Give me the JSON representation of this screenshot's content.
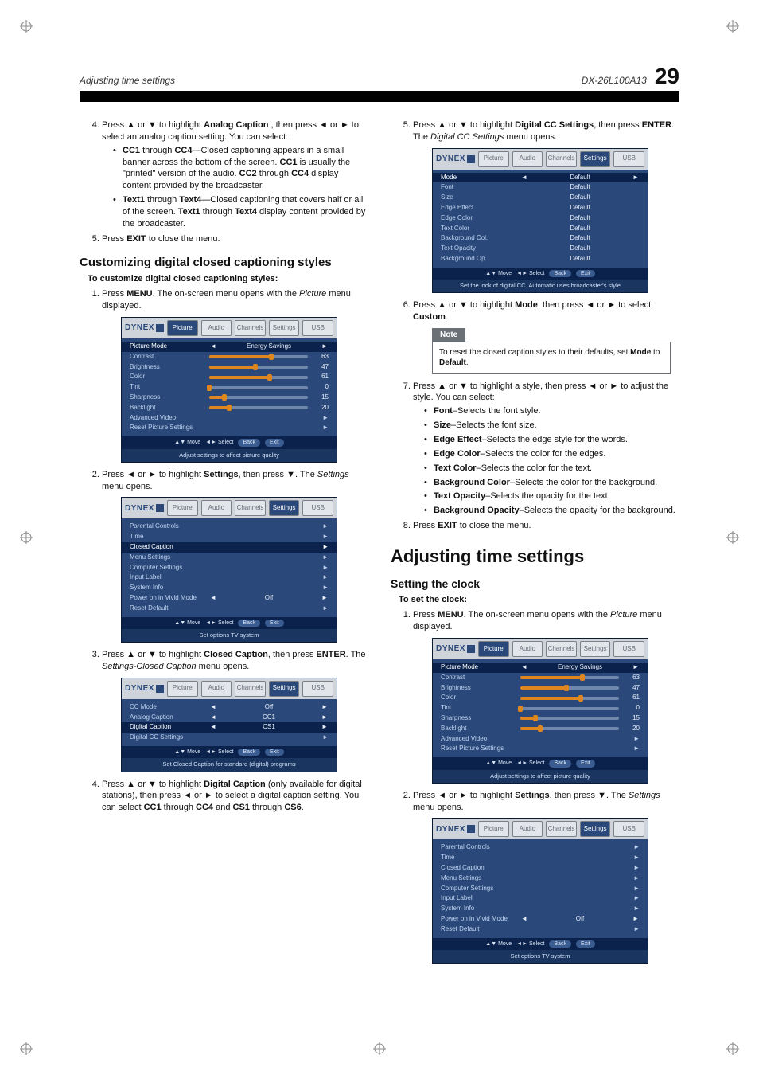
{
  "meta": {
    "header_left": "Adjusting time settings",
    "model": "DX-26L100A13",
    "page_number": "29"
  },
  "left": {
    "step4_intro": "Press ▲ or ▼ to highlight ",
    "step4_bold": "Analog Caption",
    "step4_rest": ", then press ◄ or ► to select an analog caption setting. You can select:",
    "bullet_cc_a": "CC1",
    "bullet_cc_b": " through ",
    "bullet_cc_c": "CC4",
    "bullet_cc_d": "—Closed captioning appears in a small banner across the bottom of the screen. ",
    "bullet_cc_e": "CC1",
    "bullet_cc_f": " is usually the \"printed\" version of the audio. ",
    "bullet_cc_g": "CC2",
    "bullet_cc_h": " through ",
    "bullet_cc_i": "CC4",
    "bullet_cc_j": " display content provided by the broadcaster.",
    "bullet_txt_a": "Text1",
    "bullet_txt_b": " through ",
    "bullet_txt_c": "Text4",
    "bullet_txt_d": "—Closed captioning that covers half or all of the screen. ",
    "bullet_txt_e": "Text1",
    "bullet_txt_f": " through ",
    "bullet_txt_g": "Text4",
    "bullet_txt_h": " display content provided by the broadcaster.",
    "step5_a": "Press ",
    "step5_b": "EXIT",
    "step5_c": " to close the menu.",
    "h2": "Customizing digital closed captioning styles",
    "task": "To customize digital closed captioning styles:",
    "s1_a": "Press ",
    "s1_b": "MENU",
    "s1_c": ". The on-screen menu opens with the ",
    "s1_d": "Picture",
    "s1_e": " menu displayed.",
    "s2_a": "Press ◄ or ► to highlight ",
    "s2_b": "Settings",
    "s2_c": ", then press ▼. The ",
    "s2_d": "Settings",
    "s2_e": " menu opens.",
    "s3_a": "Press ▲ or ▼ to highlight ",
    "s3_b": "Closed Caption",
    "s3_c": ", then press ",
    "s3_d": "ENTER",
    "s3_e": ". The ",
    "s3_f": "Settings-Closed Caption",
    "s3_g": " menu opens.",
    "s4_a": "Press ▲ or ▼ to highlight ",
    "s4_b": "Digital Caption",
    "s4_c": " (only available for digital stations), then press ◄ or ► to select a digital caption setting. You can select ",
    "s4_d": "CC1",
    "s4_e": " through ",
    "s4_f": "CC4",
    "s4_g": " and ",
    "s4_h": "CS1",
    "s4_i": " through ",
    "s4_j": "CS6",
    "s4_k": "."
  },
  "right": {
    "s5_a": "Press ▲ or ▼ to highlight ",
    "s5_b": "Digital CC Settings",
    "s5_c": ", then press ",
    "s5_d": "ENTER",
    "s5_e": ". The ",
    "s5_f": "Digital CC Settings",
    "s5_g": " menu opens.",
    "s6_a": "Press ▲ or ▼ to highlight ",
    "s6_b": "Mode",
    "s6_c": ", then press ◄ or ► to select ",
    "s6_d": "Custom",
    "s6_e": ".",
    "note_head": "Note",
    "note_body_a": "To reset the closed caption styles to their defaults, set ",
    "note_body_b": "Mode",
    "note_body_c": " to ",
    "note_body_d": "Default",
    "note_body_e": ".",
    "s7_a": "Press ▲ or ▼ to highlight a style, then press ◄ or ► to adjust the style. You can select:",
    "b_font_a": "Font",
    "b_font_b": "–Selects the font style.",
    "b_size_a": "Size",
    "b_size_b": "–Selects the font size.",
    "b_ee_a": "Edge Effect",
    "b_ee_b": "–Selects the edge style for the words.",
    "b_ec_a": "Edge Color",
    "b_ec_b": "–Selects the color for the edges.",
    "b_tc_a": "Text Color",
    "b_tc_b": "–Selects the color for the text.",
    "b_bc_a": "Background Color",
    "b_bc_b": "–Selects the color for the background.",
    "b_to_a": "Text Opacity",
    "b_to_b": "–Selects the opacity for the text.",
    "b_bo_a": "Background Opacity",
    "b_bo_b": "–Selects the opacity for the background.",
    "s8_a": "Press ",
    "s8_b": "EXIT",
    "s8_c": " to close the menu.",
    "h1": "Adjusting time settings",
    "h3": "Setting the clock",
    "task": "To set the clock:",
    "c1_a": "Press ",
    "c1_b": "MENU",
    "c1_c": ". The on-screen menu opens with the ",
    "c1_d": "Picture",
    "c1_e": " menu displayed.",
    "c2_a": "Press ◄ or ► to highlight ",
    "c2_b": "Settings",
    "c2_c": ", then press ▼. The ",
    "c2_d": "Settings",
    "c2_e": " menu opens."
  },
  "osd": {
    "logo": "DYNEX",
    "tab_labels": [
      "Picture",
      "Audio",
      "Channels",
      "Settings",
      "USB"
    ],
    "picture": {
      "caption": "Adjust settings to affect picture quality",
      "rows": [
        {
          "label": "Picture Mode",
          "value": "Energy Savings",
          "arrows": true,
          "hi": true
        },
        {
          "label": "Contrast",
          "slider": 63
        },
        {
          "label": "Brightness",
          "slider": 47
        },
        {
          "label": "Color",
          "slider": 61
        },
        {
          "label": "Tint",
          "slider": 0
        },
        {
          "label": "Sharpness",
          "slider": 15
        },
        {
          "label": "Backlight",
          "slider": 20
        },
        {
          "label": "Advanced Video",
          "more": true
        },
        {
          "label": "Reset Picture Settings",
          "more": true
        }
      ],
      "hint": {
        "move": "▲▼ Move",
        "select": "◄► Select",
        "back": "Back",
        "exit": "Exit"
      }
    },
    "settings": {
      "caption": "Set options TV system",
      "rows": [
        {
          "label": "Parental Controls",
          "more": true
        },
        {
          "label": "Time",
          "more": true
        },
        {
          "label": "Closed Caption",
          "more": true,
          "hi": true
        },
        {
          "label": "Menu Settings",
          "more": true
        },
        {
          "label": "Computer Settings",
          "more": true
        },
        {
          "label": "Input Label",
          "more": true
        },
        {
          "label": "System Info",
          "more": true
        },
        {
          "label": "Power on in Vivid Mode",
          "value": "Off",
          "arrows": true
        },
        {
          "label": "Reset Default",
          "more": true
        }
      ]
    },
    "cc": {
      "caption": "Set Closed Caption for standard (digital) programs",
      "rows": [
        {
          "label": "CC Mode",
          "value": "Off",
          "arrows": true
        },
        {
          "label": "Analog Caption",
          "value": "CC1",
          "arrows": true
        },
        {
          "label": "Digital Caption",
          "value": "CS1",
          "arrows": true,
          "hi": true
        },
        {
          "label": "Digital CC Settings",
          "more": true
        }
      ]
    },
    "dcc": {
      "caption": "Set the look of digital CC. Automatic uses broadcaster's style",
      "rows": [
        {
          "label": "Mode",
          "value": "Default",
          "arrows": true,
          "hi": true
        },
        {
          "label": "Font",
          "value": "Default"
        },
        {
          "label": "Size",
          "value": "Default"
        },
        {
          "label": "Edge Effect",
          "value": "Default"
        },
        {
          "label": "Edge Color",
          "value": "Default"
        },
        {
          "label": "Text Color",
          "value": "Default"
        },
        {
          "label": "Background Col.",
          "value": "Default"
        },
        {
          "label": "Text Opacity",
          "value": "Default"
        },
        {
          "label": "Background Op.",
          "value": "Default"
        }
      ]
    },
    "settings_plain": {
      "caption": "Set options TV system",
      "rows": [
        {
          "label": "Parental Controls",
          "more": true
        },
        {
          "label": "Time",
          "more": true
        },
        {
          "label": "Closed Caption",
          "more": true
        },
        {
          "label": "Menu Settings",
          "more": true
        },
        {
          "label": "Computer Settings",
          "more": true
        },
        {
          "label": "Input Label",
          "more": true
        },
        {
          "label": "System Info",
          "more": true
        },
        {
          "label": "Power on in Vivid Mode",
          "value": "Off",
          "arrows": true
        },
        {
          "label": "Reset Default",
          "more": true
        }
      ]
    }
  }
}
